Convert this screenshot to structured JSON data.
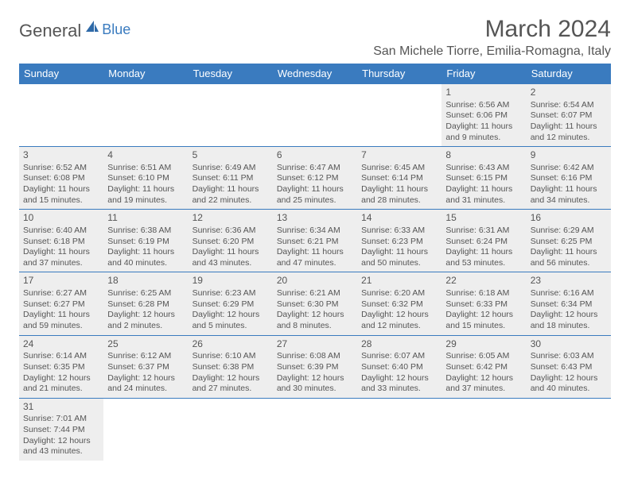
{
  "logo": {
    "general": "General",
    "blue": "Blue"
  },
  "title": "March 2024",
  "location": "San Michele Tiorre, Emilia-Romagna, Italy",
  "colors": {
    "header_bg": "#3a7bbf",
    "header_text": "#ffffff",
    "cell_filled_bg": "#eeeeee",
    "cell_border": "#3a7bbf",
    "body_text": "#555555",
    "logo_blue": "#3a7bbf"
  },
  "day_headers": [
    "Sunday",
    "Monday",
    "Tuesday",
    "Wednesday",
    "Thursday",
    "Friday",
    "Saturday"
  ],
  "weeks": [
    [
      null,
      null,
      null,
      null,
      null,
      {
        "n": "1",
        "sr": "Sunrise: 6:56 AM",
        "ss": "Sunset: 6:06 PM",
        "dl": "Daylight: 11 hours and 9 minutes."
      },
      {
        "n": "2",
        "sr": "Sunrise: 6:54 AM",
        "ss": "Sunset: 6:07 PM",
        "dl": "Daylight: 11 hours and 12 minutes."
      }
    ],
    [
      {
        "n": "3",
        "sr": "Sunrise: 6:52 AM",
        "ss": "Sunset: 6:08 PM",
        "dl": "Daylight: 11 hours and 15 minutes."
      },
      {
        "n": "4",
        "sr": "Sunrise: 6:51 AM",
        "ss": "Sunset: 6:10 PM",
        "dl": "Daylight: 11 hours and 19 minutes."
      },
      {
        "n": "5",
        "sr": "Sunrise: 6:49 AM",
        "ss": "Sunset: 6:11 PM",
        "dl": "Daylight: 11 hours and 22 minutes."
      },
      {
        "n": "6",
        "sr": "Sunrise: 6:47 AM",
        "ss": "Sunset: 6:12 PM",
        "dl": "Daylight: 11 hours and 25 minutes."
      },
      {
        "n": "7",
        "sr": "Sunrise: 6:45 AM",
        "ss": "Sunset: 6:14 PM",
        "dl": "Daylight: 11 hours and 28 minutes."
      },
      {
        "n": "8",
        "sr": "Sunrise: 6:43 AM",
        "ss": "Sunset: 6:15 PM",
        "dl": "Daylight: 11 hours and 31 minutes."
      },
      {
        "n": "9",
        "sr": "Sunrise: 6:42 AM",
        "ss": "Sunset: 6:16 PM",
        "dl": "Daylight: 11 hours and 34 minutes."
      }
    ],
    [
      {
        "n": "10",
        "sr": "Sunrise: 6:40 AM",
        "ss": "Sunset: 6:18 PM",
        "dl": "Daylight: 11 hours and 37 minutes."
      },
      {
        "n": "11",
        "sr": "Sunrise: 6:38 AM",
        "ss": "Sunset: 6:19 PM",
        "dl": "Daylight: 11 hours and 40 minutes."
      },
      {
        "n": "12",
        "sr": "Sunrise: 6:36 AM",
        "ss": "Sunset: 6:20 PM",
        "dl": "Daylight: 11 hours and 43 minutes."
      },
      {
        "n": "13",
        "sr": "Sunrise: 6:34 AM",
        "ss": "Sunset: 6:21 PM",
        "dl": "Daylight: 11 hours and 47 minutes."
      },
      {
        "n": "14",
        "sr": "Sunrise: 6:33 AM",
        "ss": "Sunset: 6:23 PM",
        "dl": "Daylight: 11 hours and 50 minutes."
      },
      {
        "n": "15",
        "sr": "Sunrise: 6:31 AM",
        "ss": "Sunset: 6:24 PM",
        "dl": "Daylight: 11 hours and 53 minutes."
      },
      {
        "n": "16",
        "sr": "Sunrise: 6:29 AM",
        "ss": "Sunset: 6:25 PM",
        "dl": "Daylight: 11 hours and 56 minutes."
      }
    ],
    [
      {
        "n": "17",
        "sr": "Sunrise: 6:27 AM",
        "ss": "Sunset: 6:27 PM",
        "dl": "Daylight: 11 hours and 59 minutes."
      },
      {
        "n": "18",
        "sr": "Sunrise: 6:25 AM",
        "ss": "Sunset: 6:28 PM",
        "dl": "Daylight: 12 hours and 2 minutes."
      },
      {
        "n": "19",
        "sr": "Sunrise: 6:23 AM",
        "ss": "Sunset: 6:29 PM",
        "dl": "Daylight: 12 hours and 5 minutes."
      },
      {
        "n": "20",
        "sr": "Sunrise: 6:21 AM",
        "ss": "Sunset: 6:30 PM",
        "dl": "Daylight: 12 hours and 8 minutes."
      },
      {
        "n": "21",
        "sr": "Sunrise: 6:20 AM",
        "ss": "Sunset: 6:32 PM",
        "dl": "Daylight: 12 hours and 12 minutes."
      },
      {
        "n": "22",
        "sr": "Sunrise: 6:18 AM",
        "ss": "Sunset: 6:33 PM",
        "dl": "Daylight: 12 hours and 15 minutes."
      },
      {
        "n": "23",
        "sr": "Sunrise: 6:16 AM",
        "ss": "Sunset: 6:34 PM",
        "dl": "Daylight: 12 hours and 18 minutes."
      }
    ],
    [
      {
        "n": "24",
        "sr": "Sunrise: 6:14 AM",
        "ss": "Sunset: 6:35 PM",
        "dl": "Daylight: 12 hours and 21 minutes."
      },
      {
        "n": "25",
        "sr": "Sunrise: 6:12 AM",
        "ss": "Sunset: 6:37 PM",
        "dl": "Daylight: 12 hours and 24 minutes."
      },
      {
        "n": "26",
        "sr": "Sunrise: 6:10 AM",
        "ss": "Sunset: 6:38 PM",
        "dl": "Daylight: 12 hours and 27 minutes."
      },
      {
        "n": "27",
        "sr": "Sunrise: 6:08 AM",
        "ss": "Sunset: 6:39 PM",
        "dl": "Daylight: 12 hours and 30 minutes."
      },
      {
        "n": "28",
        "sr": "Sunrise: 6:07 AM",
        "ss": "Sunset: 6:40 PM",
        "dl": "Daylight: 12 hours and 33 minutes."
      },
      {
        "n": "29",
        "sr": "Sunrise: 6:05 AM",
        "ss": "Sunset: 6:42 PM",
        "dl": "Daylight: 12 hours and 37 minutes."
      },
      {
        "n": "30",
        "sr": "Sunrise: 6:03 AM",
        "ss": "Sunset: 6:43 PM",
        "dl": "Daylight: 12 hours and 40 minutes."
      }
    ],
    [
      {
        "n": "31",
        "sr": "Sunrise: 7:01 AM",
        "ss": "Sunset: 7:44 PM",
        "dl": "Daylight: 12 hours and 43 minutes."
      },
      null,
      null,
      null,
      null,
      null,
      null
    ]
  ]
}
